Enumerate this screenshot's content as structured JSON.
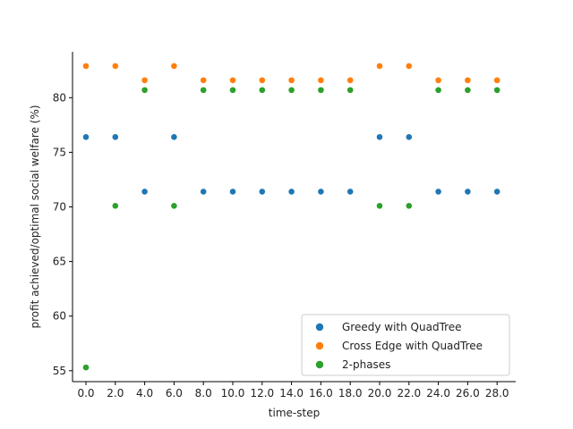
{
  "chart_data": {
    "type": "scatter",
    "title": "",
    "xlabel": "time-step",
    "ylabel": "profit achieved/optimal social welfare (%)",
    "x": [
      0.0,
      2.0,
      4.0,
      6.0,
      8.0,
      10.0,
      12.0,
      14.0,
      16.0,
      18.0,
      20.0,
      22.0,
      24.0,
      26.0,
      28.0
    ],
    "x_tick_labels": [
      "0.0",
      "2.0",
      "4.0",
      "6.0",
      "8.0",
      "10.0",
      "12.0",
      "14.0",
      "16.0",
      "18.0",
      "20.0",
      "22.0",
      "24.0",
      "26.0",
      "28.0"
    ],
    "y_ticks": [
      55,
      60,
      65,
      70,
      75,
      80
    ],
    "ylim": [
      54.0,
      84.2
    ],
    "grid": false,
    "legend_position": "lower-right",
    "series": [
      {
        "name": "Greedy with QuadTree",
        "color": "#1f77b4",
        "values": [
          76.4,
          76.4,
          71.4,
          76.4,
          71.4,
          71.4,
          71.4,
          71.4,
          71.4,
          71.4,
          76.4,
          76.4,
          71.4,
          71.4,
          71.4
        ]
      },
      {
        "name": "Cross Edge with QuadTree",
        "color": "#ff7f0e",
        "values": [
          82.9,
          82.9,
          81.6,
          82.9,
          81.6,
          81.6,
          81.6,
          81.6,
          81.6,
          81.6,
          82.9,
          82.9,
          81.6,
          81.6,
          81.6
        ]
      },
      {
        "name": "2-phases",
        "color": "#2ca02c",
        "values": [
          55.3,
          70.1,
          80.7,
          70.1,
          80.7,
          80.7,
          80.7,
          80.7,
          80.7,
          80.7,
          70.1,
          70.1,
          80.7,
          80.7,
          80.7
        ]
      }
    ]
  }
}
